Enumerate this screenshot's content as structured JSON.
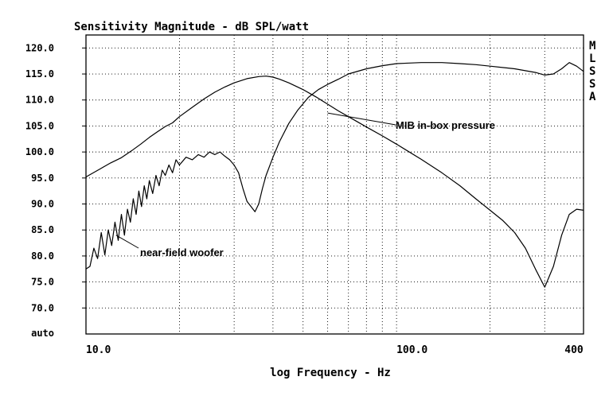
{
  "chart_data": {
    "type": "line",
    "title": "Sensitivity Magnitude - dB SPL/watt",
    "xlabel": "log Frequency - Hz",
    "ylabel": "",
    "x_scale": "log",
    "xlim": [
      10,
      400
    ],
    "ylim": [
      65,
      122.5
    ],
    "x_ticks": [
      {
        "value": 10,
        "label": "10.0"
      },
      {
        "value": 100,
        "label": "100.0"
      },
      {
        "value": 400,
        "label": "400"
      }
    ],
    "y_ticks": [
      {
        "value": 120,
        "label": "120.0"
      },
      {
        "value": 115,
        "label": "115.0"
      },
      {
        "value": 110,
        "label": "110.0"
      },
      {
        "value": 105,
        "label": "105.0"
      },
      {
        "value": 100,
        "label": "100.0"
      },
      {
        "value": 95,
        "label": "95.0"
      },
      {
        "value": 90,
        "label": "90.0"
      },
      {
        "value": 85,
        "label": "85.0"
      },
      {
        "value": 80,
        "label": "80.0"
      },
      {
        "value": 75,
        "label": "75.0"
      },
      {
        "value": 70,
        "label": "70.0"
      }
    ],
    "y_bottom_label": "auto",
    "side_label": [
      "M",
      "L",
      "S",
      "S",
      "A"
    ],
    "grid": true,
    "series": [
      {
        "name": "MIB in-box pressure",
        "x": [
          10,
          11,
          12,
          13,
          14,
          15,
          16,
          17,
          18,
          19,
          20,
          22,
          24,
          26,
          28,
          30,
          33,
          36,
          38,
          40,
          42,
          45,
          50,
          55,
          60,
          65,
          70,
          80,
          90,
          100,
          120,
          140,
          160,
          180,
          200,
          220,
          240,
          260,
          280,
          300,
          320,
          340,
          360,
          380,
          400
        ],
        "values": [
          95.2,
          96.6,
          97.9,
          98.9,
          100.2,
          101.5,
          102.8,
          103.9,
          104.9,
          105.6,
          106.8,
          108.6,
          110.2,
          111.5,
          112.5,
          113.3,
          114.1,
          114.5,
          114.6,
          114.4,
          114.0,
          113.3,
          112.0,
          110.6,
          109.2,
          107.9,
          106.8,
          104.8,
          103.1,
          101.5,
          98.6,
          96.0,
          93.5,
          91.0,
          88.8,
          86.8,
          84.5,
          81.5,
          77.5,
          74.0,
          78.0,
          84.0,
          88.0,
          89.0,
          88.8
        ]
      },
      {
        "name": "near-field woofer",
        "x": [
          10,
          10.3,
          10.6,
          10.9,
          11.2,
          11.5,
          11.8,
          12.1,
          12.4,
          12.7,
          13.0,
          13.3,
          13.6,
          13.9,
          14.2,
          14.5,
          14.8,
          15.1,
          15.4,
          15.7,
          16,
          16.4,
          16.8,
          17.2,
          17.6,
          18,
          18.5,
          19,
          19.5,
          20,
          21,
          22,
          23,
          24,
          25,
          26,
          27,
          28,
          29,
          30,
          31,
          32,
          33,
          34,
          35,
          36,
          37,
          38,
          40,
          42,
          45,
          48,
          52,
          56,
          60,
          65,
          70,
          80,
          90,
          100,
          120,
          140,
          160,
          180,
          200,
          240,
          280,
          300,
          320,
          340,
          360,
          380,
          400
        ],
        "values": [
          77.5,
          78.0,
          81.5,
          79.5,
          84.5,
          80.2,
          85.0,
          82.0,
          86.5,
          83.0,
          88.0,
          84.0,
          89.0,
          86.5,
          91.0,
          88.0,
          92.5,
          89.5,
          93.5,
          91.0,
          94.5,
          92.0,
          95.5,
          93.5,
          96.5,
          95.5,
          97.5,
          96.0,
          98.5,
          97.5,
          99.0,
          98.5,
          99.5,
          99.0,
          100.0,
          99.5,
          100.0,
          99.2,
          98.5,
          97.5,
          96.0,
          93.0,
          90.5,
          89.5,
          88.5,
          90.0,
          93.0,
          95.5,
          99.0,
          102.0,
          105.5,
          108.0,
          110.5,
          112.0,
          113.0,
          114.0,
          115.0,
          116.0,
          116.6,
          117.0,
          117.2,
          117.2,
          117.0,
          116.8,
          116.5,
          116.0,
          115.3,
          114.8,
          115.0,
          116.0,
          117.2,
          116.5,
          115.5
        ]
      }
    ],
    "annotations": [
      {
        "text": "MIB in-box pressure",
        "target_x": 60,
        "target_y": 107.5
      },
      {
        "text": "near-field woofer",
        "target_x": 12.5,
        "target_y": 84
      }
    ]
  }
}
